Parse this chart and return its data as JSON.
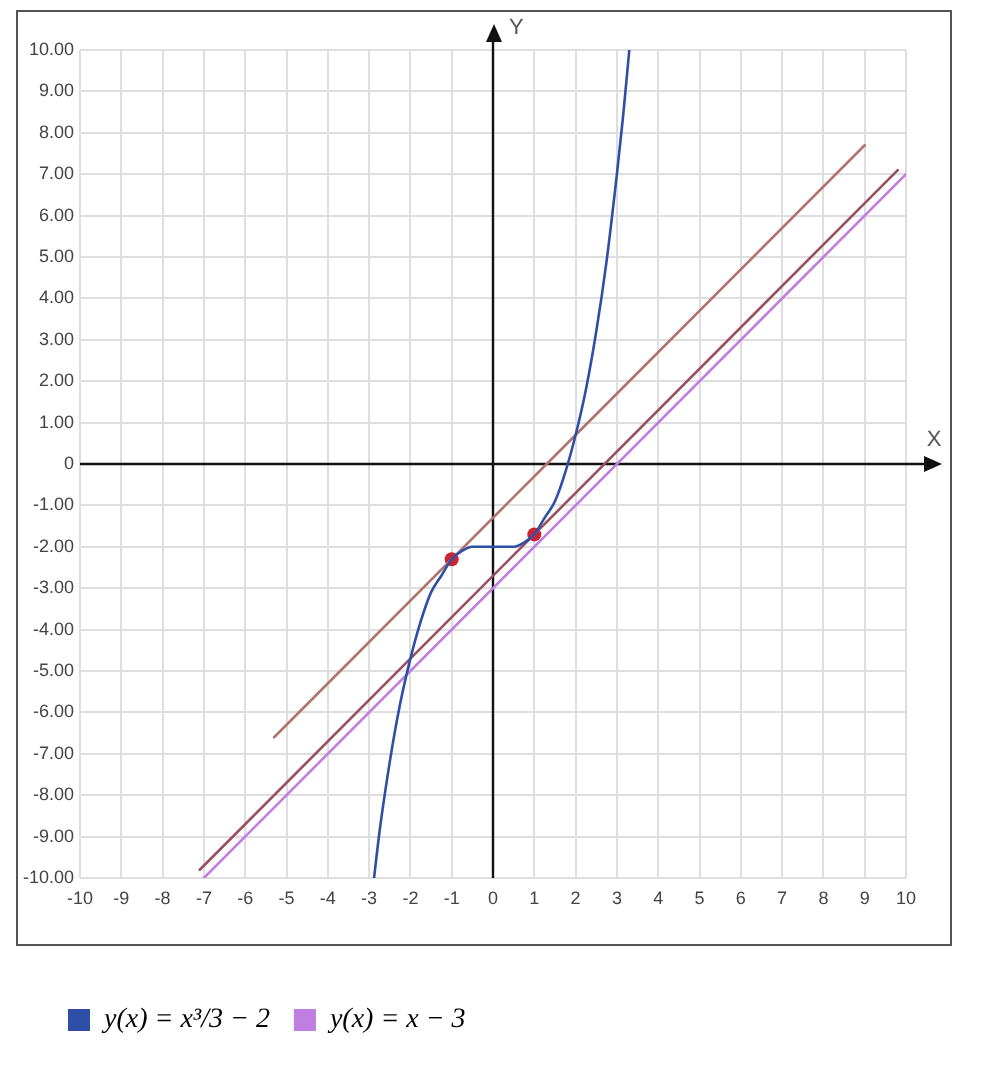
{
  "chart_data": {
    "type": "line",
    "xlabel": "X",
    "ylabel": "Y",
    "xlim": [
      -10,
      10
    ],
    "ylim": [
      -10,
      10
    ],
    "xticks": [
      -10,
      -9,
      -8,
      -7,
      -6,
      -5,
      -4,
      -3,
      -2,
      -1,
      0,
      1,
      2,
      3,
      4,
      5,
      6,
      7,
      8,
      9,
      10
    ],
    "yticks": [
      {
        "value": -10,
        "label": "-10.00"
      },
      {
        "value": -9,
        "label": "-9.00"
      },
      {
        "value": -8,
        "label": "-8.00"
      },
      {
        "value": -7,
        "label": "-7.00"
      },
      {
        "value": -6,
        "label": "-6.00"
      },
      {
        "value": -5,
        "label": "-5.00"
      },
      {
        "value": -4,
        "label": "-4.00"
      },
      {
        "value": -3,
        "label": "-3.00"
      },
      {
        "value": -2,
        "label": "-2.00"
      },
      {
        "value": -1,
        "label": "-1.00"
      },
      0,
      {
        "value": 1,
        "label": "1.00"
      },
      {
        "value": 2,
        "label": "2.00"
      },
      {
        "value": 3,
        "label": "3.00"
      },
      {
        "value": 4,
        "label": "4.00"
      },
      {
        "value": 5,
        "label": "5.00"
      },
      {
        "value": 6,
        "label": "6.00"
      },
      {
        "value": 7,
        "label": "7.00"
      },
      {
        "value": 8,
        "label": "8.00"
      },
      {
        "value": 9,
        "label": "9.00"
      },
      {
        "value": 10,
        "label": "10.00"
      }
    ],
    "grid": true,
    "legend": "bottom",
    "series": [
      {
        "name": "y(x) = x³/3 − 2",
        "color": "#2f4fa6",
        "x": [
          -2.88,
          -2.75,
          -2.5,
          -2.25,
          -2,
          -1.75,
          -1.5,
          -1.25,
          -1,
          -0.75,
          -0.5,
          -0.25,
          0,
          0.25,
          0.5,
          0.75,
          1,
          1.25,
          1.5,
          1.75,
          2,
          2.25,
          2.5,
          2.75,
          3,
          3.15,
          3.3
        ],
        "values": [
          -10.0,
          -8.9,
          -7.2,
          -5.8,
          -4.7,
          -3.8,
          -3.1,
          -2.7,
          -2.3,
          -2.1,
          -2.0,
          -2.0,
          -2.0,
          -2.0,
          -2.0,
          -1.9,
          -1.7,
          -1.3,
          -0.9,
          -0.2,
          0.7,
          1.8,
          3.2,
          4.9,
          7.0,
          8.4,
          10.0
        ]
      },
      {
        "name": "y(x) = x − 3",
        "color": "#bf7ee0",
        "x": [
          -7,
          10
        ],
        "values": [
          -10,
          7
        ]
      },
      {
        "color": "#b0746c",
        "x": [
          -5.3,
          9
        ],
        "values": [
          -6.6,
          7.7
        ]
      },
      {
        "color": "#9a4f5f",
        "x": [
          -7.1,
          9.8
        ],
        "values": [
          -9.8,
          7.1
        ]
      },
      {
        "type": "scatter",
        "color": "#cc2233",
        "marker": "circle",
        "x": [
          -1,
          1
        ],
        "values": [
          -2.3,
          -1.7
        ]
      }
    ]
  }
}
